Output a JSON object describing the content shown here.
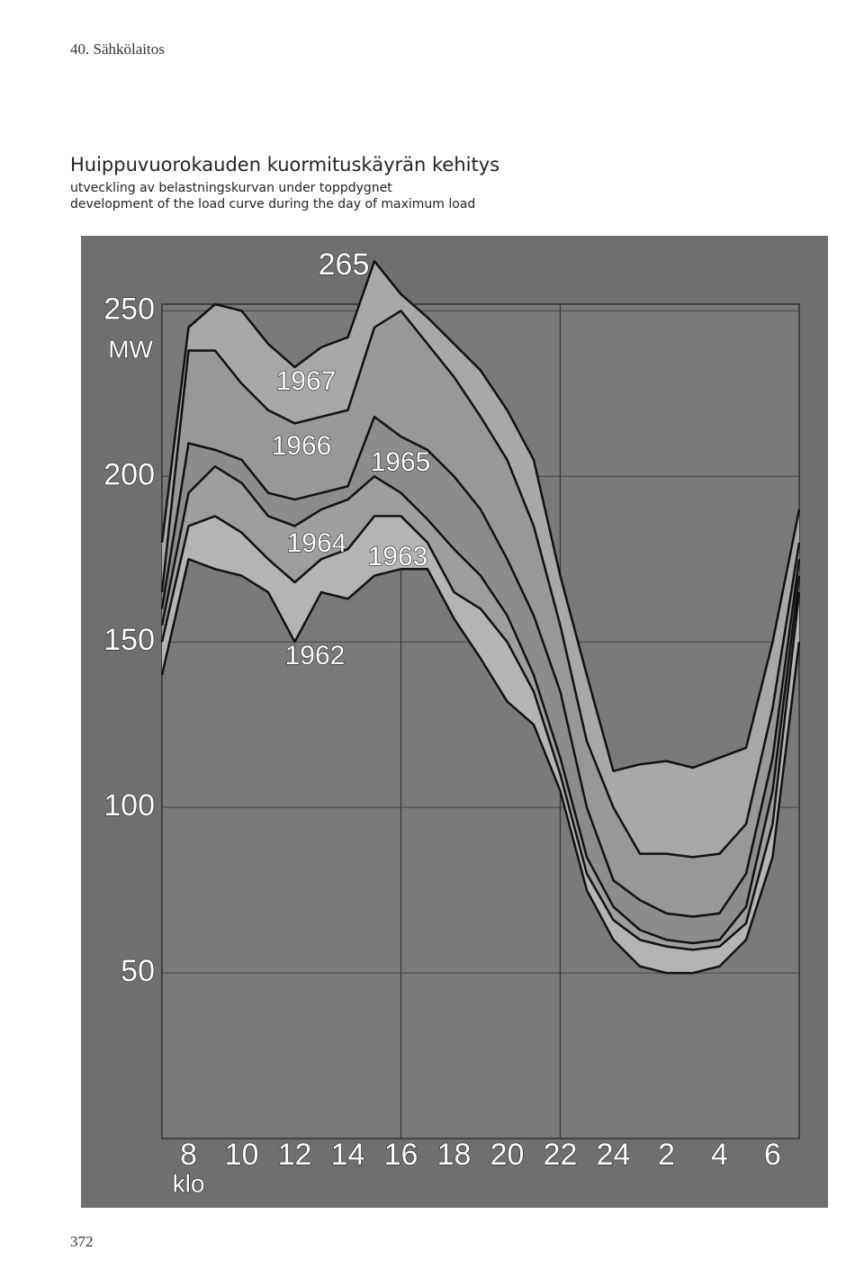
{
  "header": "40. Sähkölaitos",
  "page_number": "372",
  "chart_data": {
    "type": "line",
    "title": "Huippuvuorokauden kuormituskäyrän kehitys",
    "subtitle": "utveckling av belastningskurvan under toppdygnet",
    "subtitle2": "development of the load curve during the day of maximum load",
    "y_label": "MW",
    "x_label": "klo",
    "annotation": "265",
    "categories": [
      null,
      "8",
      null,
      "10",
      null,
      "12",
      null,
      "14",
      null,
      "16",
      null,
      "18",
      null,
      "20",
      null,
      "22",
      null,
      "24",
      null,
      "2",
      null,
      "4",
      null,
      "6",
      null
    ],
    "ylim": [
      0,
      252
    ],
    "yticks": [
      50,
      100,
      150,
      200,
      250
    ],
    "grid": true,
    "series": [
      {
        "name": "1967",
        "color": "#111111",
        "values": [
          180,
          245,
          252,
          250,
          240,
          233,
          239,
          242,
          265,
          255,
          248,
          240,
          232,
          220,
          205,
          170,
          140,
          111,
          113,
          114,
          112,
          115,
          118,
          150,
          190
        ]
      },
      {
        "name": "1966",
        "color": "#111111",
        "values": [
          165,
          238,
          238,
          228,
          220,
          216,
          218,
          220,
          245,
          250,
          240,
          230,
          218,
          205,
          185,
          155,
          120,
          100,
          86,
          86,
          85,
          86,
          95,
          130,
          180
        ]
      },
      {
        "name": "1965",
        "color": "#111111",
        "values": [
          160,
          210,
          208,
          205,
          195,
          193,
          195,
          197,
          218,
          212,
          208,
          200,
          190,
          175,
          158,
          135,
          100,
          78,
          72,
          68,
          67,
          68,
          80,
          115,
          175
        ]
      },
      {
        "name": "1964",
        "color": "#111111",
        "values": [
          155,
          195,
          203,
          198,
          188,
          185,
          190,
          193,
          200,
          195,
          187,
          178,
          170,
          158,
          140,
          115,
          85,
          70,
          63,
          60,
          59,
          60,
          70,
          105,
          170
        ]
      },
      {
        "name": "1963",
        "color": "#111111",
        "values": [
          150,
          185,
          188,
          183,
          175,
          168,
          175,
          178,
          188,
          188,
          180,
          165,
          160,
          150,
          135,
          110,
          80,
          66,
          60,
          58,
          57,
          58,
          65,
          95,
          165
        ]
      },
      {
        "name": "1962",
        "color": "#111111",
        "values": [
          140,
          175,
          172,
          170,
          165,
          150,
          165,
          163,
          170,
          172,
          172,
          157,
          145,
          132,
          125,
          105,
          75,
          60,
          52,
          50,
          50,
          52,
          60,
          85,
          150
        ]
      }
    ]
  }
}
